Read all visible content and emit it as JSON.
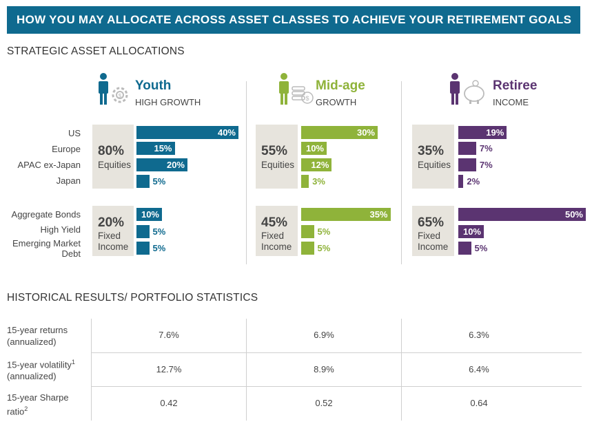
{
  "banner_title": "HOW YOU MAY ALLOCATE ACROSS ASSET CLASSES TO ACHIEVE YOUR RETIREMENT GOALS",
  "section1_title": "STRATEGIC ASSET ALLOCATIONS",
  "section2_title": "HISTORICAL RESULTS/ PORTFOLIO STATISTICS",
  "colors": {
    "banner": "#0f6a8f",
    "youth": "#0f6a8f",
    "midage": "#8fb33a",
    "retiree": "#5b3471",
    "box": "#e7e4dd"
  },
  "profiles": [
    {
      "name": "Youth",
      "subtitle": "HIGH GROWTH",
      "icon": "person-gear-icon"
    },
    {
      "name": "Mid-age",
      "subtitle": "GROWTH",
      "icon": "person-coins-icon"
    },
    {
      "name": "Retiree",
      "subtitle": "INCOME",
      "icon": "person-piggybank-icon"
    }
  ],
  "summary": [
    {
      "equities_pct": "80%",
      "equities_label": "Equities",
      "fixed_pct": "20%",
      "fixed_label_1": "Fixed",
      "fixed_label_2": "Income"
    },
    {
      "equities_pct": "55%",
      "equities_label": "Equities",
      "fixed_pct": "45%",
      "fixed_label_1": "Fixed",
      "fixed_label_2": "Income"
    },
    {
      "equities_pct": "35%",
      "equities_label": "Equities",
      "fixed_pct": "65%",
      "fixed_label_1": "Fixed",
      "fixed_label_2": "Income"
    }
  ],
  "row_labels": {
    "us": "US",
    "europe": "Europe",
    "apac": "APAC ex-Japan",
    "japan": "Japan",
    "agg_bonds": "Aggregate Bonds",
    "high_yield": "High Yield",
    "emd_1": "Emerging Market",
    "emd_2": "Debt"
  },
  "stats_labels": {
    "returns_1": "15-year returns",
    "returns_2": "(annualized)",
    "vol_1": "15-year volatility",
    "vol_sup": "1",
    "vol_2": "(annualized)",
    "sharpe_1": "15-year Sharpe",
    "sharpe_2": "ratio",
    "sharpe_sup": "2"
  },
  "stats_values": [
    {
      "returns": "7.6%",
      "volatility": "12.7%",
      "sharpe": "0.42"
    },
    {
      "returns": "6.9%",
      "volatility": "8.9%",
      "sharpe": "0.52"
    },
    {
      "returns": "6.3%",
      "volatility": "6.4%",
      "sharpe": "0.64"
    }
  ],
  "chart_data": {
    "type": "bar",
    "orientation": "horizontal",
    "categories": [
      "US",
      "Europe",
      "APAC ex-Japan",
      "Japan",
      "Aggregate Bonds",
      "High Yield",
      "Emerging Market Debt"
    ],
    "series": [
      {
        "name": "Youth",
        "values": [
          40,
          15,
          20,
          5,
          10,
          5,
          5
        ],
        "labels": [
          "40%",
          "15%",
          "20%",
          "5%",
          "10%",
          "5%",
          "5%"
        ]
      },
      {
        "name": "Mid-age",
        "values": [
          30,
          10,
          12,
          3,
          35,
          5,
          5
        ],
        "labels": [
          "30%",
          "10%",
          "12%",
          "3%",
          "35%",
          "5%",
          "5%"
        ]
      },
      {
        "name": "Retiree",
        "values": [
          19,
          7,
          7,
          2,
          50,
          10,
          5
        ],
        "labels": [
          "19%",
          "7%",
          "7%",
          "2%",
          "50%",
          "10%",
          "5%"
        ]
      }
    ],
    "title": "STRATEGIC ASSET ALLOCATIONS",
    "xlim": [
      0,
      50
    ]
  }
}
